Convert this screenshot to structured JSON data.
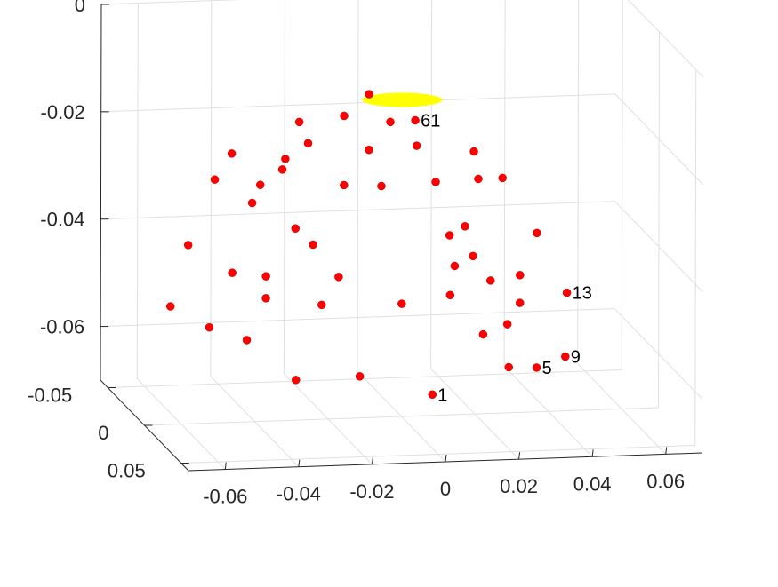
{
  "chart_data": {
    "type": "scatter",
    "dimensions": "3d",
    "title": "",
    "xlabel": "",
    "ylabel": "",
    "zlabel": "",
    "grid": true,
    "colors": {
      "points": "#ff0000",
      "ellipse": "#ffff00",
      "grid": "#e0e0e0",
      "axes": "#262626",
      "background": "#ffffff"
    },
    "axes": {
      "x": {
        "ticks": [
          -0.06,
          -0.04,
          -0.02,
          0,
          0.02,
          0.04,
          0.06
        ],
        "tick_labels": [
          "-0.06",
          "-0.04",
          "-0.02",
          "0",
          "0.02",
          "0.04",
          "0.06"
        ],
        "lim": [
          -0.07,
          0.07
        ]
      },
      "y": {
        "ticks": [
          -0.05,
          0,
          0.05
        ],
        "tick_labels": [
          "-0.05",
          "0",
          "0.05"
        ],
        "lim": [
          -0.06,
          0.06
        ]
      },
      "z": {
        "ticks": [
          -0.06,
          -0.04,
          -0.02,
          0
        ],
        "tick_labels": [
          "-0.06",
          "-0.04",
          "-0.02",
          "0"
        ],
        "lim": [
          -0.07,
          0
        ]
      }
    },
    "surface_ellipse": {
      "x": 0.0,
      "y": 0.0,
      "z": -0.011,
      "rx": 0.009,
      "ry": 0.009
    },
    "series": [
      {
        "marker": "filled-circle",
        "points": [
          {
            "x": 0.0,
            "y": 0.042,
            "z": -0.06,
            "label": "1"
          },
          {
            "x": -0.035,
            "y": 0.031,
            "z": -0.058
          },
          {
            "x": -0.02,
            "y": 0.043,
            "z": -0.056
          },
          {
            "x": 0.023,
            "y": 0.031,
            "z": -0.057
          },
          {
            "x": 0.033,
            "y": 0.019,
            "z": -0.059,
            "label": "5"
          },
          {
            "x": -0.046,
            "y": 0.019,
            "z": -0.052
          },
          {
            "x": -0.054,
            "y": 0.008,
            "z": -0.051
          },
          {
            "x": -0.063,
            "y": 0.0,
            "z": -0.048
          },
          {
            "x": 0.042,
            "y": 0.013,
            "z": -0.058,
            "label": "9"
          },
          {
            "x": 0.015,
            "y": 0.036,
            "z": -0.05
          },
          {
            "x": 0.024,
            "y": 0.024,
            "z": -0.05
          },
          {
            "x": 0.03,
            "y": 0.011,
            "z": -0.048
          },
          {
            "x": 0.045,
            "y": 0.0,
            "z": -0.048,
            "label": "13"
          },
          {
            "x": -0.033,
            "y": -0.02,
            "z": -0.05
          },
          {
            "x": -0.02,
            "y": -0.009,
            "z": -0.05
          },
          {
            "x": 0.0,
            "y": 0.0,
            "z": -0.049
          },
          {
            "x": 0.015,
            "y": -0.009,
            "z": -0.049
          },
          {
            "x": 0.028,
            "y": -0.019,
            "z": -0.048
          },
          {
            "x": -0.045,
            "y": -0.006,
            "z": -0.043
          },
          {
            "x": -0.037,
            "y": 0.0,
            "z": -0.043
          },
          {
            "x": -0.018,
            "y": 0.004,
            "z": -0.043
          },
          {
            "x": 0.014,
            "y": 0.002,
            "z": -0.042
          },
          {
            "x": 0.02,
            "y": -0.003,
            "z": -0.041
          },
          {
            "x": 0.033,
            "y": -0.004,
            "z": -0.045
          },
          {
            "x": -0.055,
            "y": -0.016,
            "z": -0.039
          },
          {
            "x": -0.022,
            "y": -0.011,
            "z": -0.039
          },
          {
            "x": 0.015,
            "y": -0.01,
            "z": -0.038
          },
          {
            "x": 0.02,
            "y": -0.014,
            "z": -0.037
          },
          {
            "x": 0.04,
            "y": -0.016,
            "z": -0.039
          },
          {
            "x": -0.037,
            "y": -0.019,
            "z": -0.032
          },
          {
            "x": -0.033,
            "y": -0.028,
            "z": -0.03
          },
          {
            "x": -0.026,
            "y": -0.033,
            "z": -0.028
          },
          {
            "x": -0.011,
            "y": -0.024,
            "z": -0.03
          },
          {
            "x": 0.0,
            "y": -0.028,
            "z": -0.031
          },
          {
            "x": 0.014,
            "y": -0.024,
            "z": -0.03
          },
          {
            "x": 0.026,
            "y": -0.026,
            "z": -0.03
          },
          {
            "x": 0.034,
            "y": -0.033,
            "z": -0.031
          },
          {
            "x": -0.028,
            "y": -0.019,
            "z": -0.024
          },
          {
            "x": -0.018,
            "y": -0.038,
            "z": -0.024
          },
          {
            "x": -0.005,
            "y": -0.02,
            "z": -0.023
          },
          {
            "x": 0.01,
            "y": -0.03,
            "z": -0.024
          },
          {
            "x": 0.025,
            "y": -0.027,
            "z": -0.025
          },
          {
            "x": -0.019,
            "y": -0.045,
            "z": -0.021
          },
          {
            "x": 0.005,
            "y": -0.041,
            "z": -0.021
          },
          {
            "x": -0.045,
            "y": -0.03,
            "z": -0.029
          },
          {
            "x": -0.038,
            "y": -0.042,
            "z": -0.026
          },
          {
            "x": 0.001,
            "y": -0.05,
            "z": -0.017
          },
          {
            "x": 0.012,
            "y": -0.042,
            "z": -0.021,
            "label": "61"
          },
          {
            "x": -0.007,
            "y": -0.044,
            "z": -0.02
          },
          {
            "x": -0.028,
            "y": -0.005,
            "z": -0.035
          }
        ]
      }
    ]
  }
}
